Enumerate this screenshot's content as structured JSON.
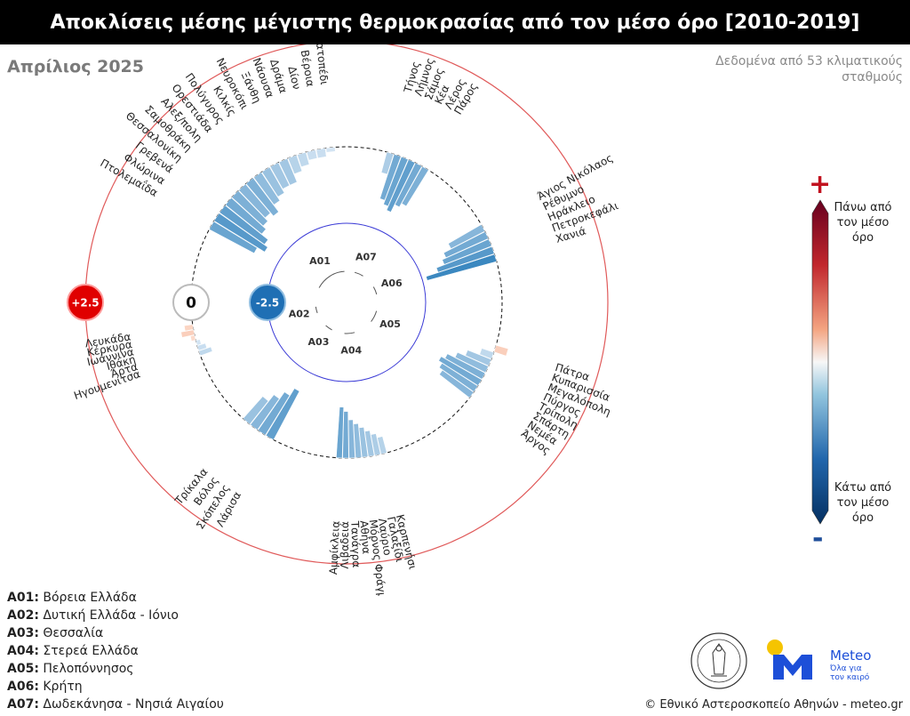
{
  "title": "Αποκλίσεις μέσης μέγιστης θερμοκρασίας από τον μέσο όρο [2010-2019]",
  "month": "Απρίλιος 2025",
  "note": "Δεδομένα από 53 κλιματικούς σταθμούς",
  "colorbar": {
    "plus": "+",
    "minus": "-",
    "top_label": "Πάνω από τον μέσο όρο",
    "bottom_label": "Κάτω από τον μέσο όρο"
  },
  "legend": [
    {
      "code": "A01:",
      "name": "Βόρεια Ελλάδα"
    },
    {
      "code": "A02:",
      "name": "Δυτική Ελλάδα - Ιόνιο"
    },
    {
      "code": "A03:",
      "name": "Θεσσαλία"
    },
    {
      "code": "A04:",
      "name": "Στερεά Ελλάδα"
    },
    {
      "code": "A05:",
      "name": "Πελοπόννησος"
    },
    {
      "code": "A06:",
      "name": "Κρήτη"
    },
    {
      "code": "A07:",
      "name": "Δωδεκάνησα - Νησιά Αιγαίου"
    }
  ],
  "copyright": "© Εθνικό Αστεροσκοπείο Αθηνών - meteo.gr",
  "logo": {
    "name": "Meteo",
    "tagline_1": "Όλα για",
    "tagline_2": "τον καιρό"
  },
  "chart_data": {
    "type": "bar",
    "layout": "circular",
    "rlim": [
      2.5,
      -2.5
    ],
    "ring_labels": [
      "+2.5",
      "0",
      "-2.5"
    ],
    "colors": {
      "positive": "#c1121f",
      "zero": "#ffffff",
      "negative": "#1f6fb4"
    },
    "groups": [
      {
        "code": "A01",
        "stations": [
          {
            "name": "Πτολεμαΐδα",
            "value": -1.2
          },
          {
            "name": "Φλώρινα",
            "value": -1.4
          },
          {
            "name": "Γρεβενά",
            "value": -1.3
          },
          {
            "name": "Θεσσαλονίκη",
            "value": -1.1
          },
          {
            "name": "Σαμοθράκη",
            "value": -1.0
          },
          {
            "name": "Αλεξ/πολη",
            "value": -0.9
          },
          {
            "name": "Ορεστιάδα",
            "value": -1.0
          },
          {
            "name": "Πολύγυρος",
            "value": -0.8
          },
          {
            "name": "Κιλκίς",
            "value": -0.7
          },
          {
            "name": "Νευροκόπι",
            "value": -0.6
          },
          {
            "name": "Ξάνθη",
            "value": -0.6
          },
          {
            "name": "Νάουσα",
            "value": -0.4
          },
          {
            "name": "Δράμα",
            "value": -0.3
          },
          {
            "name": "Δίον",
            "value": -0.2
          },
          {
            "name": "Βέροια",
            "value": -0.2
          },
          {
            "name": "Βατοπέδι",
            "value": -0.1
          }
        ]
      },
      {
        "code": "A07",
        "stations": [
          {
            "name": "Τήνος",
            "value": -0.5
          },
          {
            "name": "Λήμνος",
            "value": -1.1
          },
          {
            "name": "Σάμος",
            "value": -1.2
          },
          {
            "name": "Κέα",
            "value": -1.3
          },
          {
            "name": "Λέρος",
            "value": -1.1
          },
          {
            "name": "Πάρος",
            "value": -1.0
          }
        ]
      },
      {
        "code": "A06",
        "stations": [
          {
            "name": "Άγιος Νικόλαος",
            "value": -0.9
          },
          {
            "name": "Ρέθυμνο",
            "value": -1.1
          },
          {
            "name": "Ηράκλειο",
            "value": -1.2
          },
          {
            "name": "Πετροκεφάλι",
            "value": -1.4
          },
          {
            "name": "Χανιά",
            "value": -1.7
          }
        ]
      },
      {
        "code": "A05",
        "stations": [
          {
            "name": "Πάτρα",
            "value": 0.3
          },
          {
            "name": "Κυπαρισσία",
            "value": -0.3
          },
          {
            "name": "Μεγαλόπολη",
            "value": -0.6
          },
          {
            "name": "Πύργος",
            "value": -0.8
          },
          {
            "name": "Τρίπολη",
            "value": -1.0
          },
          {
            "name": "Σπάρτη",
            "value": -1.1
          },
          {
            "name": "Νεμέα",
            "value": -1.0
          },
          {
            "name": "Άργος",
            "value": -0.9
          }
        ]
      },
      {
        "code": "A04",
        "stations": [
          {
            "name": "Καρπενήσι",
            "value": -0.4
          },
          {
            "name": "Γαλαξίδι",
            "value": -0.5
          },
          {
            "name": "Λαύριο",
            "value": -0.6
          },
          {
            "name": "Μόρνος Φράγμα",
            "value": -0.7
          },
          {
            "name": "Αθήνα",
            "value": -0.8
          },
          {
            "name": "Τανάγρα",
            "value": -0.9
          },
          {
            "name": "Λιβαδειά",
            "value": -1.1
          },
          {
            "name": "Αμφίκλεια",
            "value": -1.2
          }
        ]
      },
      {
        "code": "A03",
        "stations": [
          {
            "name": "Λάρισα",
            "value": -1.3
          },
          {
            "name": "Σκόπελος",
            "value": -1.1
          },
          {
            "name": "Βόλος",
            "value": -0.9
          },
          {
            "name": "Τρίκαλα",
            "value": -0.7
          }
        ]
      },
      {
        "code": "A02",
        "stations": [
          {
            "name": "Ηγουμενίτσα",
            "value": -0.3
          },
          {
            "name": "Άρτα",
            "value": -0.2
          },
          {
            "name": "Ιθάκη",
            "value": -0.1
          },
          {
            "name": "Ιωάννινα",
            "value": 0.1
          },
          {
            "name": "Κέρκυρα",
            "value": 0.3
          },
          {
            "name": "Λευκάδα",
            "value": 0.2
          }
        ]
      }
    ]
  }
}
